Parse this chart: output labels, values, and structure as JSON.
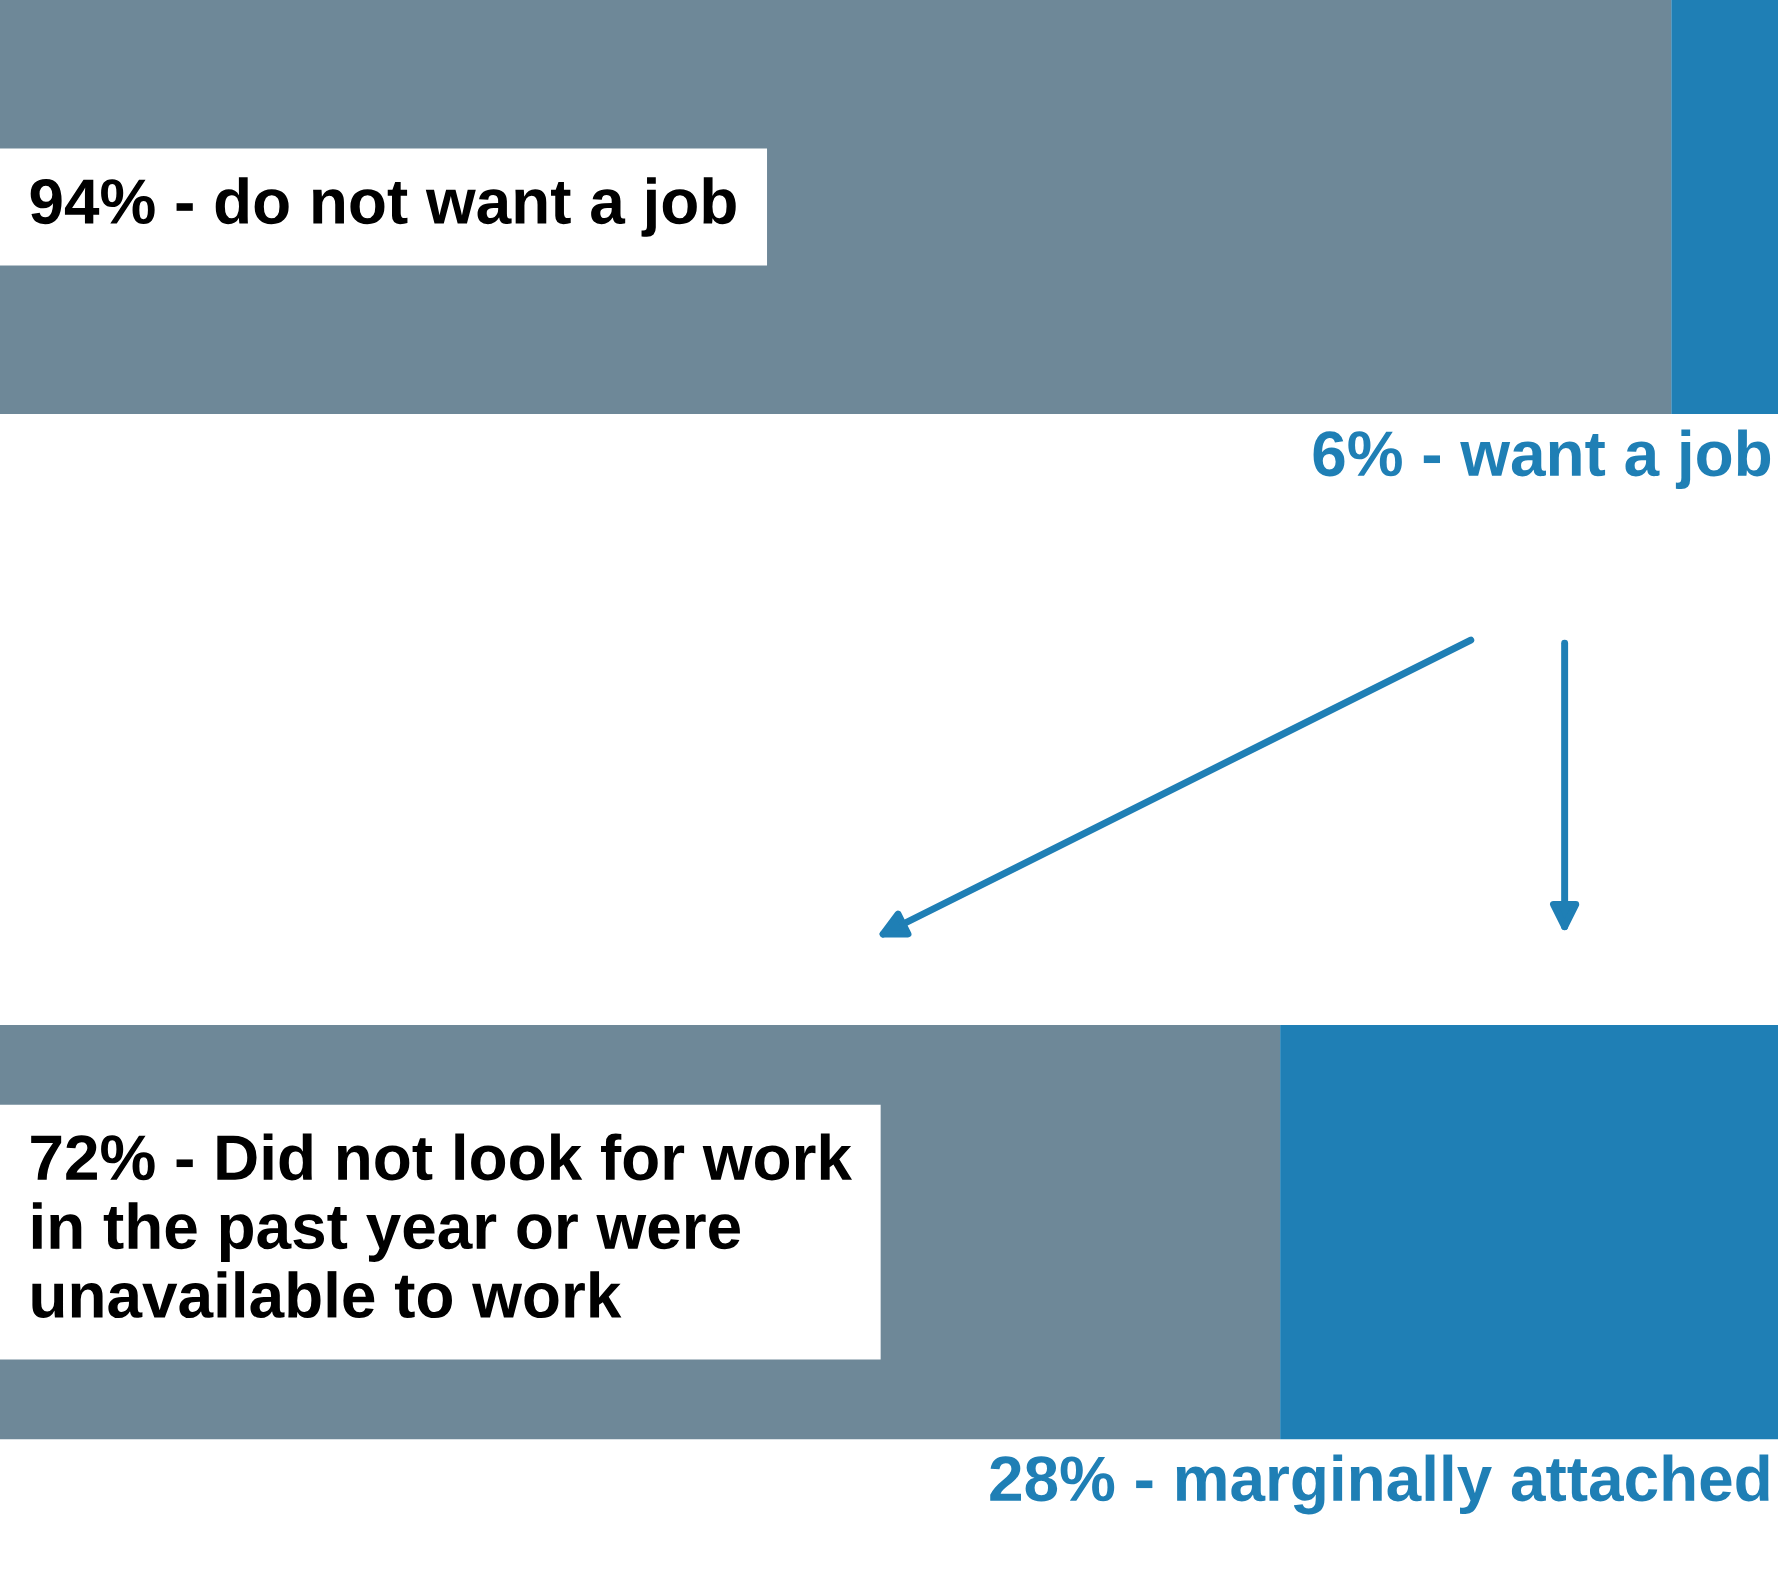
{
  "chart_data": {
    "type": "bar",
    "orientation": "horizontal",
    "stacked": true,
    "categories": [
      null,
      null
    ],
    "xlim": [
      0,
      100
    ],
    "series": [
      {
        "color": "#6e8898",
        "values": [
          94,
          72
        ],
        "value_labels": [
          "94% - do not want a job",
          "72% - Did not look for work\nin the past year or were\nunavailable to work"
        ]
      },
      {
        "color": "#1f7fb5",
        "values": [
          6,
          28
        ],
        "value_labels": [
          "6% - want a job",
          "28% - marginally attached"
        ]
      }
    ]
  }
}
